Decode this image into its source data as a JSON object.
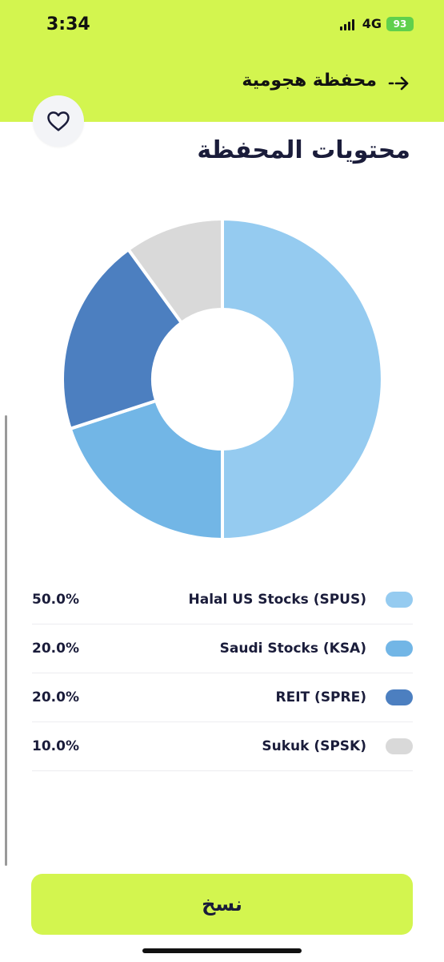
{
  "status_bar": {
    "time": "3:34",
    "network": "4G",
    "battery": "93"
  },
  "header": {
    "title": "محفظة هجومية"
  },
  "page": {
    "title": "محتويات المحفظة"
  },
  "chart_data": {
    "type": "pie",
    "categories": [
      "Halal US Stocks (SPUS)",
      "Saudi Stocks (KSA)",
      "REIT (SPRE)",
      "Sukuk (SPSK)"
    ],
    "values": [
      50.0,
      20.0,
      20.0,
      10.0
    ],
    "colors": [
      "#95cbf0",
      "#72b6e6",
      "#4c7fc0",
      "#d9d9d9"
    ],
    "donut": true
  },
  "legend": [
    {
      "label": "Halal US Stocks (SPUS)",
      "percent": "50.0%",
      "color": "#95cbf0"
    },
    {
      "label": "Saudi Stocks (KSA)",
      "percent": "20.0%",
      "color": "#72b6e6"
    },
    {
      "label": "REIT (SPRE)",
      "percent": "20.0%",
      "color": "#4c7fc0"
    },
    {
      "label": "Sukuk (SPSK)",
      "percent": "10.0%",
      "color": "#d9d9d9"
    }
  ],
  "actions": {
    "copy_label": "نسخ"
  },
  "icons": {
    "favorite": "heart-icon",
    "back": "arrow-right-icon"
  },
  "colors": {
    "accent": "#d3f54f",
    "text": "#1a1c3a"
  }
}
